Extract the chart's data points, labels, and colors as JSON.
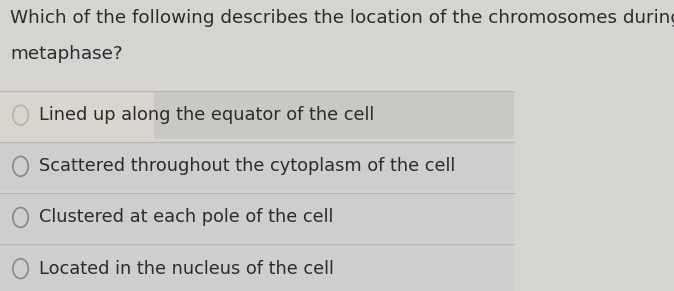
{
  "question_line1": "Which of the following describes the location of the chromosomes during",
  "question_line2": "metaphase?",
  "options": [
    "Lined up along the equator of the cell",
    "Scattered throughout the cytoplasm of the cell",
    "Clustered at each pole of the cell",
    "Located in the nucleus of the cell"
  ],
  "background_color": "#d6d4d0",
  "option_bg_colors": [
    "#cac8c4",
    "#d0cecc",
    "#d0cecc",
    "#d0cecc"
  ],
  "text_color": "#2b2b2b",
  "question_fontsize": 13.2,
  "option_fontsize": 12.8,
  "circle_color": "#888888",
  "divider_color": "#b8b6b2",
  "highlight_color": "#e8e6d8"
}
